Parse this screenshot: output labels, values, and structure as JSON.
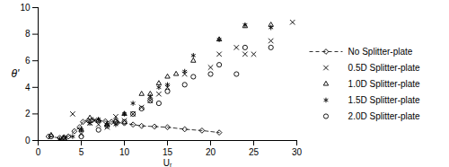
{
  "chart_data": {
    "type": "scatter",
    "x_label": "Uᵣ",
    "y_label": "θ'",
    "xlim": [
      0,
      30
    ],
    "xticks": [
      0,
      5,
      10,
      15,
      20,
      25,
      30
    ],
    "ylim": [
      0,
      10
    ],
    "yticks": [
      0,
      2,
      4,
      6,
      8,
      10
    ],
    "grid": false,
    "legend": "right",
    "series": [
      {
        "name": "No Splitter-plate",
        "type": "line",
        "marker": "diamond",
        "line_style": "dashed",
        "color": "#000000",
        "x": [
          1.2,
          2.5,
          3.0,
          3.5,
          4.2,
          4.8,
          5.2,
          5.8,
          6.3,
          7.0,
          7.8,
          8.5,
          9.2,
          10.0,
          11.0,
          12.0,
          13.5,
          15.0,
          17.0,
          19.0,
          21.0
        ],
        "values": [
          0.3,
          0.2,
          0.25,
          0.3,
          0.7,
          1.0,
          1.4,
          1.5,
          1.55,
          1.5,
          1.45,
          1.4,
          1.35,
          1.3,
          1.2,
          1.1,
          1.05,
          1.0,
          0.85,
          0.75,
          0.6
        ]
      },
      {
        "name": "0.5D Splitter-plate",
        "type": "scatter",
        "marker": "x",
        "color": "#000000",
        "x": [
          3.1,
          4.0,
          5.0,
          6.0,
          6.5,
          7.0,
          8.0,
          9.0,
          10.0,
          11.0,
          12.0,
          13.0,
          14.0,
          15.0,
          17.0,
          20.0,
          21.0,
          23.0,
          24.0,
          25.0,
          27.0,
          29.5
        ],
        "values": [
          0.2,
          2.0,
          0.5,
          1.3,
          1.5,
          1.2,
          1.0,
          1.8,
          1.5,
          2.0,
          2.5,
          3.0,
          3.5,
          4.0,
          5.0,
          5.5,
          6.5,
          7.0,
          6.5,
          6.5,
          7.5,
          8.9
        ]
      },
      {
        "name": "1.0D Splitter-plate",
        "type": "scatter",
        "marker": "triangle",
        "color": "#000000",
        "x": [
          1.5,
          3.0,
          5.0,
          6.0,
          7.0,
          8.0,
          9.0,
          10.0,
          12.0,
          13.0,
          14.0,
          15.0,
          16.0,
          18.0,
          21.0,
          24.0,
          27.0
        ],
        "values": [
          0.4,
          0.2,
          0.8,
          1.7,
          1.5,
          1.2,
          1.5,
          2.0,
          3.5,
          3.5,
          4.3,
          4.8,
          5.0,
          6.0,
          7.6,
          8.6,
          8.7
        ]
      },
      {
        "name": "1.5D Splitter-plate",
        "type": "scatter",
        "marker": "asterisk",
        "color": "#000000",
        "x": [
          2.5,
          4.0,
          5.0,
          6.0,
          7.0,
          8.0,
          9.0,
          10.0,
          11.0,
          13.0,
          14.0,
          15.0,
          17.0,
          18.0,
          21.0,
          24.0,
          27.0
        ],
        "values": [
          0.1,
          0.3,
          0.8,
          1.3,
          1.6,
          1.2,
          1.2,
          2.0,
          2.8,
          3.3,
          4.0,
          4.2,
          5.2,
          6.4,
          7.6,
          8.7,
          8.5
        ]
      },
      {
        "name": "2.0D Splitter-plate",
        "type": "scatter",
        "marker": "circle",
        "color": "#000000",
        "x": [
          1.5,
          3.0,
          5.0,
          7.0,
          8.0,
          9.0,
          10.0,
          11.0,
          12.0,
          13.0,
          14.0,
          15.0,
          17.0,
          18.0,
          20.0,
          21.0,
          23.0,
          24.0,
          27.0
        ],
        "values": [
          0.3,
          0.1,
          0.3,
          0.8,
          1.1,
          1.4,
          1.4,
          2.0,
          2.4,
          3.0,
          2.8,
          3.7,
          4.2,
          4.8,
          5.0,
          5.7,
          5.0,
          7.0,
          7.0
        ]
      }
    ]
  }
}
